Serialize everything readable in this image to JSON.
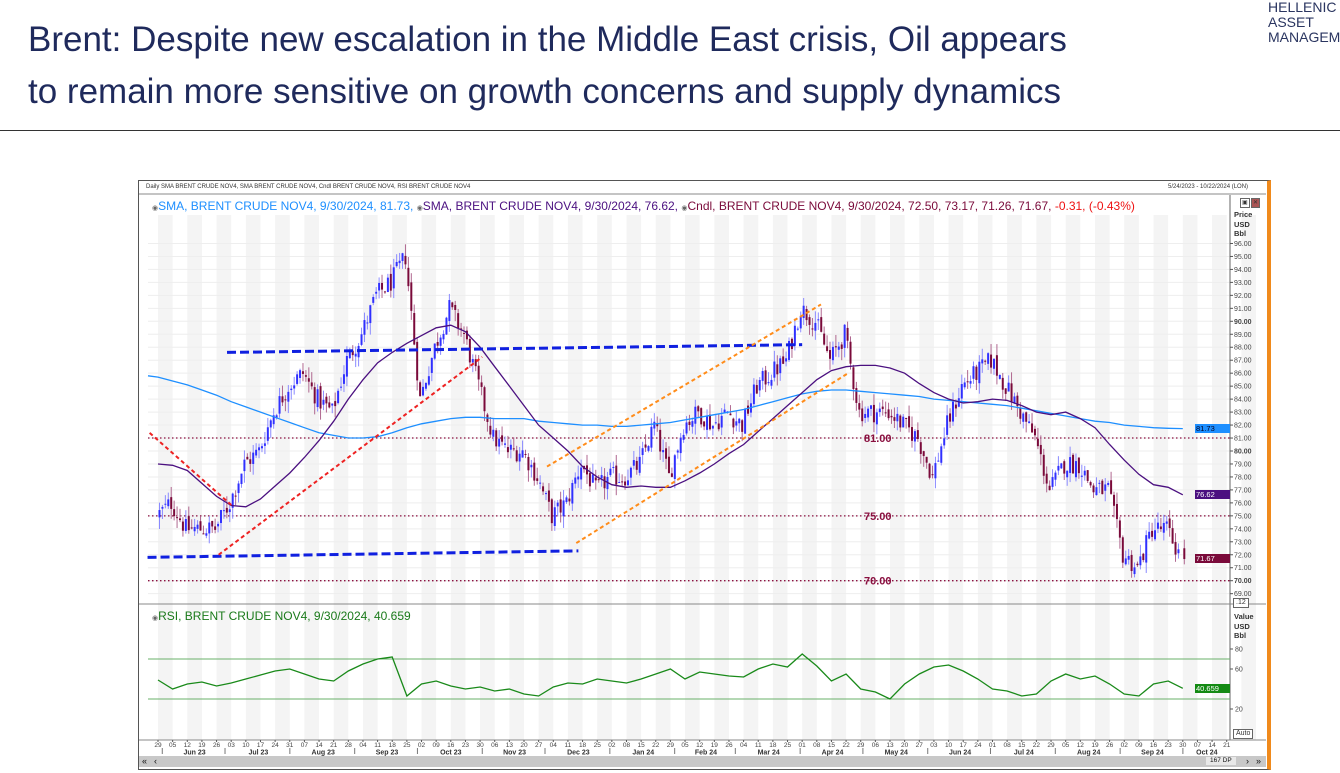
{
  "slide": {
    "title_line1": "Brent: Despite new escalation in the Middle East crisis, Oil appears",
    "title_line2": "to remain more sensitive on growth concerns and supply dynamics",
    "logo_lines": [
      "HELLENIC",
      "ASSET",
      "MANAGEMENT"
    ]
  },
  "chart_header": {
    "description": "Daily SMA BRENT CRUDE NOV4, SMA BRENT CRUDE NOV4, Cndl BRENT CRUDE NOV4, RSI BRENT CRUDE NOV4",
    "date_range": "5/24/2023 - 10/22/2024 (LON)",
    "legend_sma_long": "SMA, BRENT CRUDE NOV4, 9/30/2024, 81.73,",
    "legend_sma_short": "SMA, BRENT CRUDE NOV4, 9/30/2024, 76.62,",
    "legend_cndl": "Cndl, BRENT CRUDE NOV4, 9/30/2024, 72.50, 73.17, 71.26, 71.67,",
    "legend_change": "-0.31, (-0.43%)",
    "legend_rsi": "RSI, BRENT CRUDE NOV4, 9/30/2024, 40.659",
    "price_unit": [
      "Price",
      "USD",
      "Bbl"
    ],
    "rsi_unit": [
      "Value",
      "USD",
      "Bbl"
    ],
    "price_tags": {
      "sma_long": "81.73",
      "sma_short": "76.62",
      "last": "71.67"
    },
    "rsi_tag": "40.659",
    "scale_box": ".12",
    "auto_button": "Auto",
    "data_points": "167 DP"
  },
  "colors": {
    "title": "#1f2a5c",
    "sma_long": "#1e8fff",
    "sma_short": "#4b1080",
    "candle_up": "#3030ff",
    "candle_down": "#7a0a3a",
    "rsi": "#1a8a1a",
    "level_line": "#8a1040",
    "trend_blue": "#1020e0",
    "trend_red": "#ee2222",
    "trend_orange": "#ff8c1a",
    "accent_border": "#f08a1c"
  },
  "chart_data": [
    {
      "type": "candlestick",
      "title": "",
      "ylabel": "Price USD Bbl",
      "ylim": [
        69,
        96
      ],
      "grid": true,
      "dates": [
        "2023-05-29",
        "2023-06-05",
        "2023-06-12",
        "2023-06-19",
        "2023-06-26",
        "2023-07-03",
        "2023-07-10",
        "2023-07-17",
        "2023-07-24",
        "2023-07-31",
        "2023-08-07",
        "2023-08-14",
        "2023-08-21",
        "2023-08-28",
        "2023-09-04",
        "2023-09-11",
        "2023-09-18",
        "2023-09-25",
        "2023-10-02",
        "2023-10-09",
        "2023-10-16",
        "2023-10-23",
        "2023-10-30",
        "2023-11-06",
        "2023-11-13",
        "2023-11-20",
        "2023-11-27",
        "2023-12-04",
        "2023-12-11",
        "2023-12-18",
        "2023-12-25",
        "2024-01-01",
        "2024-01-08",
        "2024-01-15",
        "2024-01-22",
        "2024-01-29",
        "2024-02-05",
        "2024-02-12",
        "2024-02-19",
        "2024-02-26",
        "2024-03-04",
        "2024-03-11",
        "2024-03-18",
        "2024-03-25",
        "2024-04-01",
        "2024-04-08",
        "2024-04-15",
        "2024-04-22",
        "2024-04-29",
        "2024-05-06",
        "2024-05-13",
        "2024-05-20",
        "2024-05-27",
        "2024-06-03",
        "2024-06-10",
        "2024-06-17",
        "2024-06-24",
        "2024-07-01",
        "2024-07-08",
        "2024-07-15",
        "2024-07-22",
        "2024-07-29",
        "2024-08-05",
        "2024-08-12",
        "2024-08-19",
        "2024-08-26",
        "2024-09-02",
        "2024-09-09",
        "2024-09-16",
        "2024-09-23",
        "2024-09-30"
      ],
      "close": [
        75,
        76,
        74,
        74,
        74,
        76,
        79,
        80,
        83,
        85,
        86,
        84,
        83,
        87,
        89,
        92,
        93,
        95,
        84,
        88,
        91,
        89,
        85,
        81,
        80,
        80,
        78,
        75,
        76,
        79,
        77,
        78,
        78,
        79,
        82,
        78,
        82,
        83,
        82,
        83,
        82,
        85,
        86,
        87,
        91,
        90,
        87,
        89,
        83,
        83,
        83,
        82,
        81,
        78,
        82,
        85,
        86,
        87,
        85,
        83,
        81,
        77,
        79,
        79,
        77,
        77,
        72,
        71,
        74,
        74,
        71.67
      ],
      "last_bar": {
        "date": "2024-09-30",
        "open": 72.5,
        "high": 73.17,
        "low": 71.26,
        "close": 71.67,
        "change": -0.31,
        "change_pct": -0.43
      },
      "series": [
        {
          "name": "SMA",
          "color_key": "sma_long",
          "last": 81.73,
          "values": [
            85.7,
            85.4,
            85.1,
            84.7,
            84.3,
            83.8,
            83.4,
            83.0,
            82.6,
            82.2,
            81.8,
            81.4,
            81.2,
            81.0,
            81.0,
            81.1,
            81.4,
            81.8,
            82.1,
            82.3,
            82.5,
            82.6,
            82.6,
            82.5,
            82.5,
            82.5,
            82.3,
            82.2,
            82.1,
            82.0,
            82.0,
            81.9,
            81.9,
            82.0,
            82.1,
            82.2,
            82.4,
            82.6,
            82.8,
            83.0,
            83.2,
            83.5,
            83.8,
            84.1,
            84.4,
            84.6,
            84.7,
            84.7,
            84.6,
            84.5,
            84.4,
            84.3,
            84.2,
            84.0,
            83.9,
            83.8,
            83.7,
            83.6,
            83.5,
            83.3,
            83.1,
            82.9,
            82.7,
            82.5,
            82.3,
            82.2,
            82.0,
            81.9,
            81.8,
            81.75,
            81.73
          ]
        },
        {
          "name": "SMA",
          "color_key": "sma_short",
          "last": 76.62,
          "values": [
            79,
            78.9,
            78.5,
            77.5,
            76.5,
            75.8,
            75.7,
            76.3,
            77.3,
            78.3,
            79.5,
            80.8,
            82.3,
            84,
            85.5,
            86.8,
            87.6,
            88.3,
            88.9,
            89.5,
            89.7,
            89.2,
            88,
            86.5,
            85,
            83.5,
            82,
            81,
            80,
            78.8,
            78,
            77.4,
            77.2,
            77.3,
            77.2,
            77.2,
            77.7,
            78.3,
            79,
            79.8,
            80.5,
            81.5,
            82.5,
            83.5,
            84.5,
            85.5,
            86.2,
            86.5,
            86.6,
            86.6,
            86.4,
            86,
            85.2,
            84.5,
            84,
            83.7,
            83.8,
            84,
            83.9,
            83.5,
            83,
            82.8,
            83,
            82.5,
            81.8,
            80.5,
            79.3,
            78.2,
            77.4,
            77.2,
            76.62
          ]
        }
      ],
      "levels": [
        {
          "value": 81,
          "label": "81.00"
        },
        {
          "value": 75,
          "label": "75.00"
        },
        {
          "value": 70,
          "label": "70.00"
        }
      ],
      "trendlines": [
        {
          "color_key": "trend_blue",
          "style": "dashed-thick",
          "from": [
            "2023-07-01",
            87.6
          ],
          "to": [
            "2024-04-01",
            88.2
          ]
        },
        {
          "color_key": "trend_blue",
          "style": "dashed-thick",
          "from": [
            "2023-05-24",
            71.8
          ],
          "to": [
            "2023-12-16",
            72.3
          ]
        },
        {
          "color_key": "trend_red",
          "style": "dashed",
          "from": [
            "2023-05-25",
            81.4
          ],
          "to": [
            "2023-07-04",
            75.7
          ]
        },
        {
          "color_key": "trend_red",
          "style": "dashed",
          "from": [
            "2023-06-27",
            72.0
          ],
          "to": [
            "2023-10-31",
            87.25
          ]
        },
        {
          "color_key": "trend_orange",
          "style": "dashed",
          "from": [
            "2023-12-01",
            78.8
          ],
          "to": [
            "2024-04-10",
            91.3
          ]
        },
        {
          "color_key": "trend_orange",
          "style": "dashed",
          "from": [
            "2023-12-15",
            72.9
          ],
          "to": [
            "2024-04-23",
            86.0
          ]
        }
      ],
      "y_ticks": [
        "69.00",
        "70.00",
        "71.00",
        "72.00",
        "73.00",
        "74.00",
        "75.00",
        "76.00",
        "77.00",
        "78.00",
        "79.00",
        "80.00",
        "81.00",
        "82.00",
        "83.00",
        "84.00",
        "85.00",
        "86.00",
        "87.00",
        "88.00",
        "89.00",
        "90.00",
        "91.00",
        "92.00",
        "93.00",
        "94.00",
        "95.00",
        "96.00"
      ],
      "x_tick_days": [
        "29",
        "05",
        "12",
        "19",
        "26",
        "03",
        "10",
        "17",
        "24",
        "31",
        "07",
        "14",
        "21",
        "28",
        "04",
        "11",
        "18",
        "25",
        "02",
        "09",
        "16",
        "23",
        "30",
        "06",
        "13",
        "20",
        "27",
        "04",
        "11",
        "18",
        "25",
        "02",
        "08",
        "15",
        "22",
        "29",
        "05",
        "12",
        "19",
        "26",
        "04",
        "11",
        "18",
        "25",
        "01",
        "08",
        "15",
        "22",
        "29",
        "06",
        "13",
        "20",
        "27",
        "03",
        "10",
        "17",
        "24",
        "01",
        "08",
        "15",
        "22",
        "29",
        "05",
        "12",
        "19",
        "26",
        "02",
        "09",
        "16",
        "23",
        "30",
        "07",
        "14",
        "21"
      ],
      "x_months": [
        {
          "label": "Jun 23",
          "start": "2023-06-01",
          "end": "2023-06-30"
        },
        {
          "label": "Jul 23",
          "start": "2023-07-01",
          "end": "2023-07-31"
        },
        {
          "label": "Aug 23",
          "start": "2023-08-01",
          "end": "2023-08-31"
        },
        {
          "label": "Sep 23",
          "start": "2023-09-01",
          "end": "2023-09-30"
        },
        {
          "label": "Oct 23",
          "start": "2023-10-01",
          "end": "2023-10-31"
        },
        {
          "label": "Nov 23",
          "start": "2023-11-01",
          "end": "2023-11-30"
        },
        {
          "label": "Dec 23",
          "start": "2023-12-01",
          "end": "2023-12-31"
        },
        {
          "label": "Jan 24",
          "start": "2024-01-01",
          "end": "2024-01-31"
        },
        {
          "label": "Feb 24",
          "start": "2024-02-01",
          "end": "2024-02-29"
        },
        {
          "label": "Mar 24",
          "start": "2024-03-01",
          "end": "2024-03-31"
        },
        {
          "label": "Apr 24",
          "start": "2024-04-01",
          "end": "2024-04-30"
        },
        {
          "label": "May 24",
          "start": "2024-05-01",
          "end": "2024-05-31"
        },
        {
          "label": "Jun 24",
          "start": "2024-06-01",
          "end": "2024-06-30"
        },
        {
          "label": "Jul 24",
          "start": "2024-07-01",
          "end": "2024-07-31"
        },
        {
          "label": "Aug 24",
          "start": "2024-08-01",
          "end": "2024-08-31"
        },
        {
          "label": "Sep 24",
          "start": "2024-09-01",
          "end": "2024-09-30"
        },
        {
          "label": "Oct 24",
          "start": "2024-10-01",
          "end": "2024-10-22"
        }
      ]
    },
    {
      "type": "line",
      "title": "",
      "ylabel": "Value USD Bbl",
      "ylim": [
        0,
        100
      ],
      "y_ticks": [
        "80",
        "60",
        "20"
      ],
      "bands": [
        30,
        70
      ],
      "series": [
        {
          "name": "RSI",
          "color_key": "rsi",
          "last": 40.659,
          "values": [
            49,
            40,
            45,
            47,
            43,
            46,
            50,
            54,
            58,
            60,
            55,
            50,
            48,
            58,
            65,
            70,
            72,
            33,
            45,
            48,
            43,
            40,
            42,
            38,
            40,
            35,
            33,
            42,
            46,
            45,
            50,
            48,
            46,
            50,
            55,
            60,
            50,
            57,
            55,
            53,
            52,
            60,
            65,
            62,
            75,
            63,
            48,
            55,
            40,
            37,
            30,
            45,
            55,
            62,
            64,
            58,
            50,
            40,
            38,
            33,
            35,
            48,
            55,
            50,
            53,
            45,
            35,
            33,
            45,
            48,
            40.659
          ]
        }
      ]
    }
  ]
}
